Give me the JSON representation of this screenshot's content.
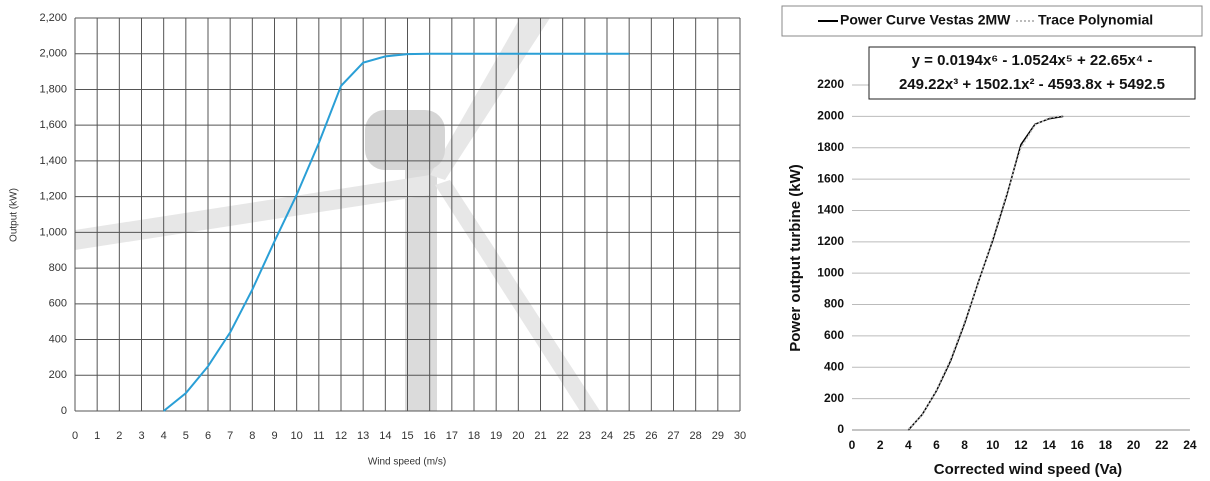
{
  "chart_data": [
    {
      "type": "line",
      "x_label": "Wind speed (m/s)",
      "y_label": "Output (kW)",
      "x": [
        4,
        5,
        6,
        7,
        8,
        9,
        10,
        11,
        12,
        13,
        14,
        15,
        16,
        17,
        18,
        19,
        20,
        21,
        22,
        23,
        24,
        25
      ],
      "series": [
        {
          "name": "Output",
          "color": "#2a9fd6",
          "values": [
            0,
            100,
            250,
            440,
            680,
            950,
            1210,
            1500,
            1820,
            1950,
            1985,
            1998,
            2000,
            2000,
            2000,
            2000,
            2000,
            2000,
            2000,
            2000,
            2000,
            2000
          ]
        }
      ],
      "xlim": [
        0,
        30
      ],
      "xticks": [
        0,
        1,
        2,
        3,
        4,
        5,
        6,
        7,
        8,
        9,
        10,
        11,
        12,
        13,
        14,
        15,
        16,
        17,
        18,
        19,
        20,
        21,
        22,
        23,
        24,
        25,
        26,
        27,
        28,
        29,
        30
      ],
      "ylim": [
        0,
        2200
      ],
      "yticks": [
        0,
        200,
        400,
        600,
        800,
        {
          "value": 1000,
          "label": "1,000"
        },
        {
          "value": 1200,
          "label": "1,200"
        },
        {
          "value": 1400,
          "label": "1,400"
        },
        {
          "value": 1600,
          "label": "1,600"
        },
        {
          "value": 1800,
          "label": "1,800"
        },
        {
          "value": 2000,
          "label": "2,000"
        },
        {
          "value": 2200,
          "label": "2,200"
        }
      ],
      "grid": "both"
    },
    {
      "type": "line",
      "x_label": "Corrected wind speed (Va)",
      "y_label": "Power output turbine (kW)",
      "annotation": [
        "y = 0.0194x⁶ - 1.0524x⁵ + 22.65x⁴ -",
        "249.22x³ + 1502.1x² - 4593.8x + 5492.5"
      ],
      "x": [
        4,
        5,
        6,
        7,
        8,
        9,
        10,
        11,
        12,
        13,
        14,
        15
      ],
      "series": [
        {
          "name": "Power Curve Vestas 2MW",
          "color": "#000000",
          "dash": false,
          "values": [
            0,
            100,
            250,
            440,
            680,
            950,
            1210,
            1500,
            1820,
            1950,
            1985,
            2000
          ]
        },
        {
          "name": "Trace Polynomial",
          "color": "#bbbbbb",
          "dash": true,
          "values": [
            5,
            95,
            255,
            450,
            690,
            945,
            1220,
            1510,
            1800,
            1945,
            1990,
            2005
          ]
        }
      ],
      "xlim": [
        0,
        25
      ],
      "xticks": [
        0,
        2,
        4,
        6,
        8,
        10,
        12,
        14,
        16,
        18,
        20,
        22,
        24
      ],
      "ylim": [
        0,
        2200
      ],
      "yticks": [
        0,
        200,
        400,
        600,
        800,
        1000,
        1200,
        1400,
        1600,
        1800,
        2000,
        2200
      ],
      "grid": "y",
      "legend": "top"
    }
  ]
}
